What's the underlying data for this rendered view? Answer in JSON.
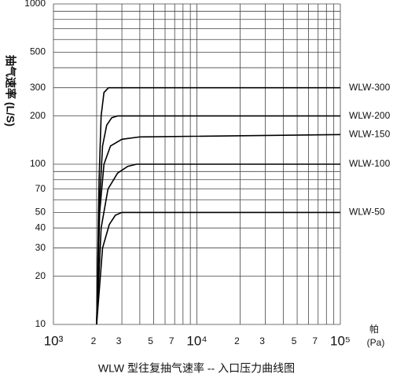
{
  "chart_data": {
    "type": "line",
    "title": "WLW 型往复抽气速率 -- 入口压力曲线图",
    "ylabel": "抽气速率 (L/S)",
    "xlabel": "帕",
    "xunit": "(Pa)",
    "xscale": "log",
    "yscale": "log",
    "xlim": [
      1000,
      100000
    ],
    "ylim": [
      10,
      1000
    ],
    "xticks": [
      {
        "value": 1000,
        "label": "10³"
      },
      {
        "value": 2000,
        "label": "2"
      },
      {
        "value": 3000,
        "label": "3"
      },
      {
        "value": 5000,
        "label": "5"
      },
      {
        "value": 7000,
        "label": "7"
      },
      {
        "value": 10000,
        "label": "10⁴"
      },
      {
        "value": 20000,
        "label": "2"
      },
      {
        "value": 30000,
        "label": "3"
      },
      {
        "value": 50000,
        "label": "5"
      },
      {
        "value": 70000,
        "label": "7"
      },
      {
        "value": 100000,
        "label": "10⁵"
      }
    ],
    "yticks": [
      10,
      20,
      30,
      40,
      50,
      70,
      100,
      200,
      300,
      500,
      1000
    ],
    "xminor": [
      4000,
      6000,
      8000,
      9000,
      40000,
      60000,
      80000,
      90000
    ],
    "yminor": [
      60,
      80,
      90,
      400,
      600,
      700,
      800,
      900
    ],
    "grid": true,
    "series": [
      {
        "name": "WLW-300",
        "color": "#000000",
        "x": [
          2000,
          2080,
          2150,
          2250,
          2420,
          100000
        ],
        "values": [
          10,
          80,
          200,
          280,
          300,
          300
        ]
      },
      {
        "name": "WLW-200",
        "color": "#000000",
        "x": [
          2000,
          2100,
          2200,
          2350,
          2550,
          2800,
          100000
        ],
        "values": [
          10,
          60,
          130,
          175,
          195,
          200,
          200
        ]
      },
      {
        "name": "WLW-150",
        "color": "#000000",
        "x": [
          2000,
          2100,
          2250,
          2500,
          3000,
          4000,
          100000
        ],
        "values": [
          10,
          50,
          100,
          130,
          143,
          148,
          153
        ]
      },
      {
        "name": "WLW-100",
        "color": "#000000",
        "x": [
          2000,
          2150,
          2400,
          2800,
          3300,
          3800,
          100000
        ],
        "values": [
          10,
          40,
          70,
          88,
          97,
          100,
          100
        ]
      },
      {
        "name": "WLW-50",
        "color": "#000000",
        "x": [
          2000,
          2200,
          2450,
          2700,
          3000,
          100000
        ],
        "values": [
          10,
          30,
          42,
          48,
          50,
          50
        ]
      }
    ]
  }
}
